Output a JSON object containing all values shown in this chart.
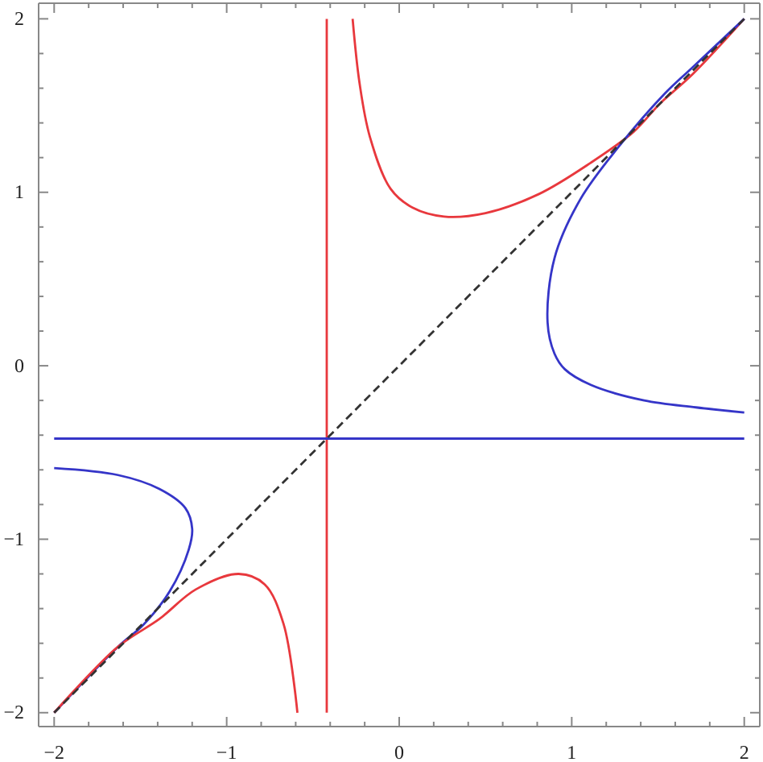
{
  "chart_data": {
    "type": "line",
    "xlim": [
      -2.09,
      2.09
    ],
    "ylim": [
      -2.08,
      2.09
    ],
    "xticks": [
      {
        "value": -2,
        "label": "−2"
      },
      {
        "value": -1.8,
        "label": null
      },
      {
        "value": -1.6,
        "label": null
      },
      {
        "value": -1.4,
        "label": null
      },
      {
        "value": -1.2,
        "label": null
      },
      {
        "value": -1,
        "label": "−1"
      },
      {
        "value": -0.8,
        "label": null
      },
      {
        "value": -0.6,
        "label": null
      },
      {
        "value": -0.4,
        "label": null
      },
      {
        "value": -0.2,
        "label": null
      },
      0,
      {
        "value": 0.2,
        "label": null
      },
      {
        "value": 0.4,
        "label": null
      },
      {
        "value": 0.6,
        "label": null
      },
      {
        "value": 0.8,
        "label": null
      },
      1,
      {
        "value": 1.2,
        "label": null
      },
      {
        "value": 1.4,
        "label": null
      },
      {
        "value": 1.6,
        "label": null
      },
      {
        "value": 1.8,
        "label": null
      },
      2
    ],
    "yticks": [
      {
        "value": -2,
        "label": "−2"
      },
      {
        "value": -1.8,
        "label": null
      },
      {
        "value": -1.6,
        "label": null
      },
      {
        "value": -1.4,
        "label": null
      },
      {
        "value": -1.2,
        "label": null
      },
      {
        "value": -1,
        "label": "−1"
      },
      {
        "value": -0.8,
        "label": null
      },
      {
        "value": -0.6,
        "label": null
      },
      {
        "value": -0.4,
        "label": null
      },
      {
        "value": -0.2,
        "label": null
      },
      0,
      {
        "value": 0.2,
        "label": null
      },
      {
        "value": 0.4,
        "label": null
      },
      {
        "value": 0.6,
        "label": null
      },
      {
        "value": 0.8,
        "label": null
      },
      1,
      {
        "value": 1.2,
        "label": null
      },
      {
        "value": 1.4,
        "label": null
      },
      {
        "value": 1.6,
        "label": null
      },
      {
        "value": 1.8,
        "label": null
      },
      2
    ],
    "grid": false,
    "series": [
      {
        "color": "#e8383d",
        "x": [
          -0.42,
          -0.42
        ],
        "values": [
          -2,
          2
        ]
      },
      {
        "color": "#3535c8",
        "x": [
          -2,
          2
        ],
        "values": [
          -0.42,
          -0.42
        ]
      },
      {
        "color": "#e8383d",
        "x": [
          -0.27,
          -0.23,
          -0.17,
          -0.05,
          0.08,
          0.26,
          0.5,
          0.81,
          1.11,
          1.36,
          1.51,
          1.7,
          2
        ],
        "values": [
          2,
          1.63,
          1.32,
          1.02,
          0.91,
          0.86,
          0.88,
          0.99,
          1.17,
          1.35,
          1.51,
          1.68,
          2
        ]
      },
      {
        "color": "#3535c8",
        "x": [
          2,
          1.7,
          1.54,
          1.27,
          1.05,
          0.9,
          0.86,
          0.9,
          0.96,
          1.11,
          1.42,
          1.72,
          2
        ],
        "values": [
          2,
          1.72,
          1.57,
          1.26,
          0.96,
          0.62,
          0.25,
          0.07,
          -0.02,
          -0.11,
          -0.2,
          -0.24,
          -0.27
        ]
      },
      {
        "color": "#3535c8",
        "x": [
          -2,
          -1.63,
          -1.39,
          -1.24,
          -1.2,
          -1.22,
          -1.33,
          -1.48,
          -1.63,
          -2
        ],
        "values": [
          -0.59,
          -0.63,
          -0.71,
          -0.82,
          -0.94,
          -1.06,
          -1.3,
          -1.49,
          -1.62,
          -2
        ]
      },
      {
        "color": "#e8383d",
        "x": [
          -2,
          -1.63,
          -1.39,
          -1.18,
          -0.93,
          -0.78,
          -0.67,
          -0.59
        ],
        "values": [
          -2,
          -1.62,
          -1.46,
          -1.29,
          -1.2,
          -1.26,
          -1.49,
          -2
        ]
      },
      {
        "color": "#333333",
        "line_style": "dashed",
        "x": [
          -2,
          2
        ],
        "values": [
          -2,
          2
        ]
      }
    ]
  }
}
